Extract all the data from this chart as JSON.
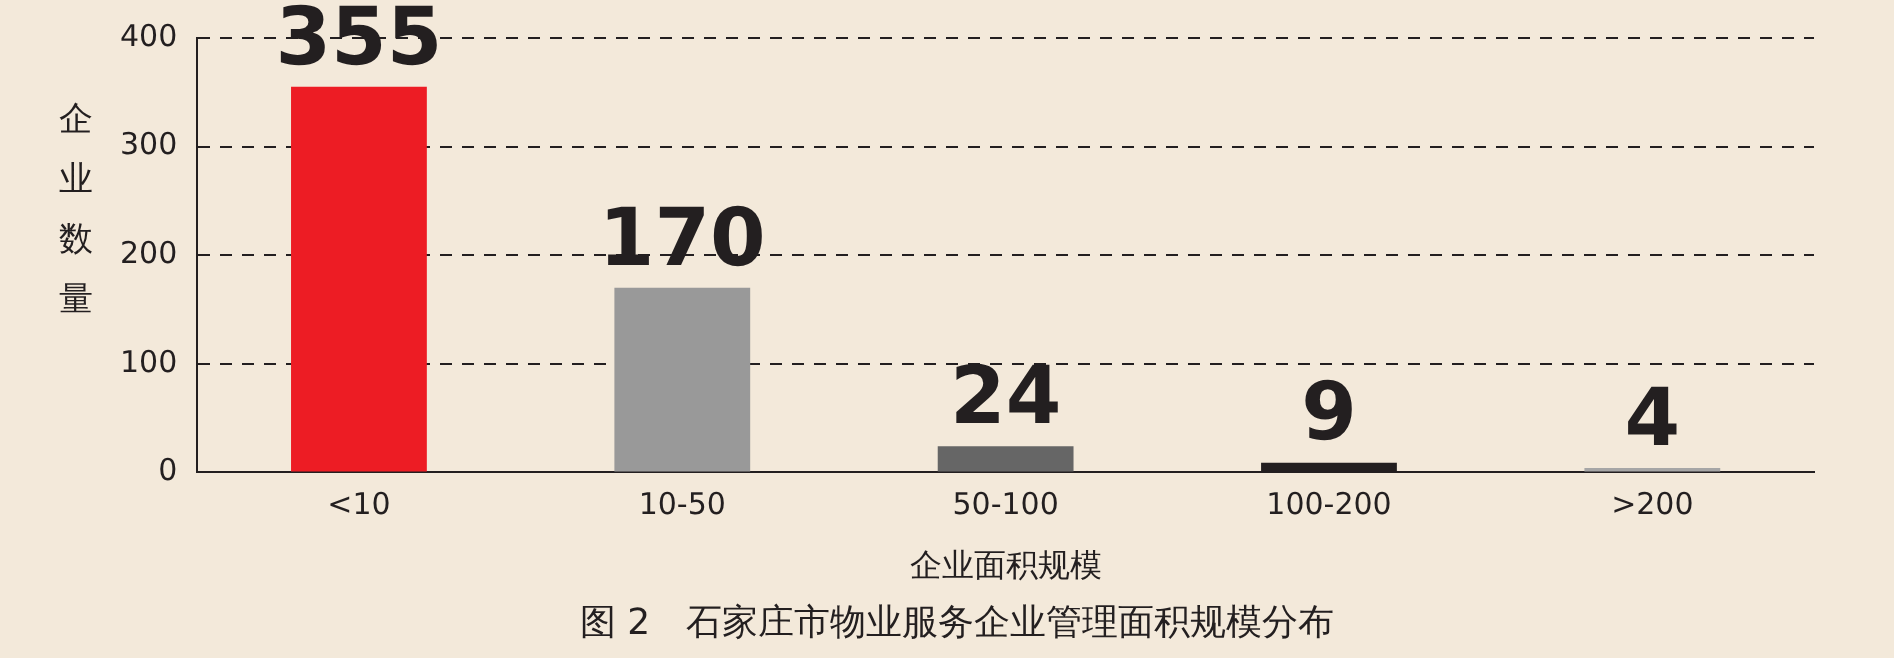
{
  "chart_data": {
    "type": "bar",
    "title": "图 2　石家庄市物业服务企业管理面积规模分布",
    "xlabel": "企业面积规模",
    "ylabel": "企业数量",
    "categories": [
      "<10",
      "10-50",
      "50-100",
      "100-200",
      ">200"
    ],
    "values": [
      355,
      170,
      24,
      9,
      4
    ],
    "colors": [
      "#ed1c24",
      "#999999",
      "#666666",
      "#231f20",
      "#a6a6a6"
    ],
    "ylim": [
      0,
      400
    ],
    "yticks": [
      0,
      100,
      200,
      300,
      400
    ],
    "grid": "y",
    "data_labels": true
  }
}
